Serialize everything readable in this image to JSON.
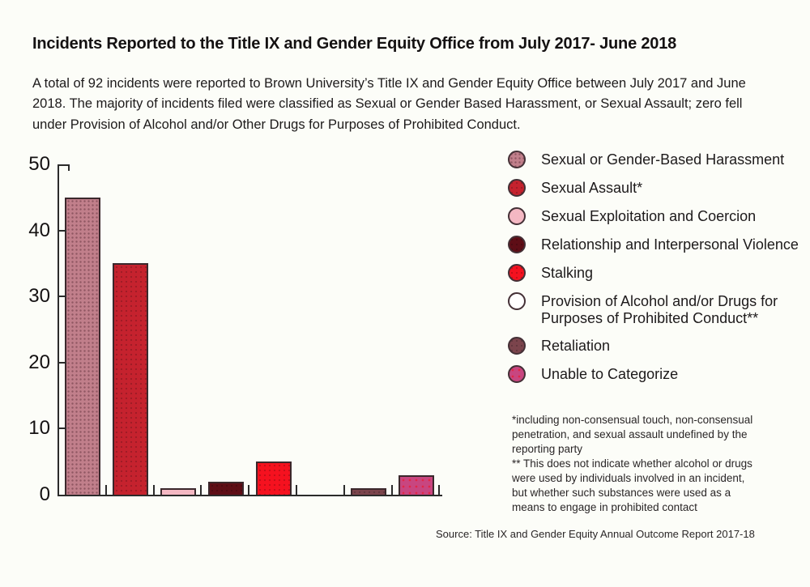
{
  "header": {
    "title": "Incidents Reported to the Title IX and Gender Equity Office from July 2017- June 2018",
    "description": "A total of 92 incidents were reported to Brown University’s Title IX and Gender Equity Office between July 2017 and June 2018. The majority of incidents filed were classified as Sexual or Gender Based Harassment, or Sexual Assault; zero fell under Provision of Alcohol and/or Other Drugs for Purposes of Prohibited Conduct."
  },
  "chart_data": {
    "type": "bar",
    "title": "Incidents Reported to the Title IX and Gender Equity Office from July 2017- June 2018",
    "total_incidents": 92,
    "categories": [
      "Sexual or Gender-Based Harassment",
      "Sexual Assault*",
      "Sexual Exploitation and Coercion",
      "Relationship and Interpersonal Violence",
      "Stalking",
      "Provision of Alcohol and/or Drugs for Purposes of Prohibited Conduct**",
      "Retaliation",
      "Unable to Categorize"
    ],
    "values": [
      45,
      35,
      1,
      2,
      5,
      0,
      1,
      3
    ],
    "colors": [
      "#c17f8b",
      "#c5222e",
      "#f4b8c3",
      "#5e0d16",
      "#f5111f",
      "#ffffff",
      "#7b444c",
      "#c84680"
    ],
    "patterns": [
      "dots-dark",
      "dots-faint",
      null,
      "dots-faint",
      "dots-faint",
      null,
      "dots-faint",
      "dots-red"
    ],
    "xlabel": "",
    "ylabel": "",
    "ylim": [
      0,
      50
    ],
    "yticks": [
      0,
      10,
      20,
      30,
      40,
      50
    ],
    "grid": false,
    "legend_position": "right",
    "axis_color": "#2b2b2b",
    "bar_border_color": "#3b282c"
  },
  "footnotes": [
    "*including non-consensual touch, non-consensual penetration, and sexual assault undefined by the reporting party",
    "** This does not indicate whether alcohol or drugs were used by individuals involved in an incident, but whether such substances were used as a means to engage in prohibited contact"
  ],
  "source": "Source: Title IX and Gender Equity Annual Outcome Report 2017-18"
}
